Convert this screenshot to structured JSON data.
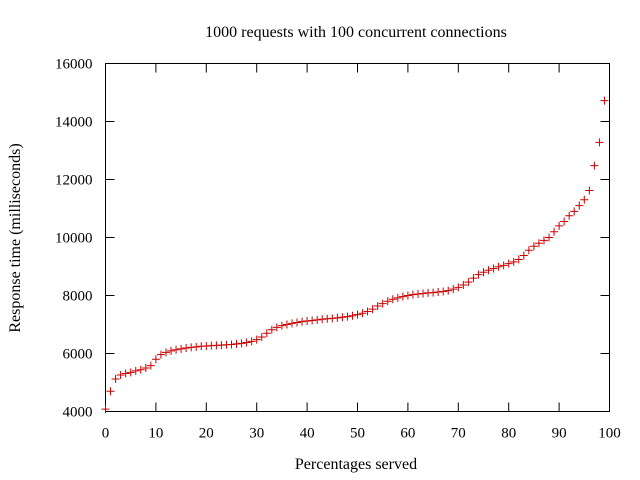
{
  "chart_data": {
    "type": "scatter",
    "title": "1000 requests with 100 concurrent connections",
    "xlabel": "Percentages served",
    "ylabel": "Response time (milliseconds)",
    "xlim": [
      0,
      100
    ],
    "ylim": [
      4000,
      16000
    ],
    "xticks": [
      0,
      10,
      20,
      30,
      40,
      50,
      60,
      70,
      80,
      90,
      100
    ],
    "yticks": [
      4000,
      6000,
      8000,
      10000,
      12000,
      14000,
      16000
    ],
    "xtick_labels": [
      "0",
      "10",
      "20",
      "30",
      "40",
      "50",
      "60",
      "70",
      "80",
      "90",
      "100"
    ],
    "ytick_labels": [
      "4000",
      "6000",
      "8000",
      "10000",
      "12000",
      "14000",
      "16000"
    ],
    "grid": false,
    "legend": "none",
    "marker_color": "#cc0000",
    "series": [
      {
        "marker": "plus",
        "x": [
          0,
          1,
          2,
          3,
          4,
          5,
          6,
          7,
          8,
          9,
          10,
          11,
          12,
          13,
          14,
          15,
          16,
          17,
          18,
          19,
          20,
          21,
          22,
          23,
          24,
          25,
          26,
          27,
          28,
          29,
          30,
          31,
          32,
          33,
          34,
          35,
          36,
          37,
          38,
          39,
          40,
          41,
          42,
          43,
          44,
          45,
          46,
          47,
          48,
          49,
          50,
          51,
          52,
          53,
          54,
          55,
          56,
          57,
          58,
          59,
          60,
          61,
          62,
          63,
          64,
          65,
          66,
          67,
          68,
          69,
          70,
          71,
          72,
          73,
          74,
          75,
          76,
          77,
          78,
          79,
          80,
          81,
          82,
          83,
          84,
          85,
          86,
          87,
          88,
          89,
          90,
          91,
          92,
          93,
          94,
          95,
          96,
          97,
          98,
          99
        ],
        "y": [
          4080,
          4700,
          5120,
          5260,
          5310,
          5350,
          5400,
          5440,
          5500,
          5580,
          5800,
          5960,
          6040,
          6090,
          6130,
          6160,
          6190,
          6210,
          6230,
          6250,
          6260,
          6270,
          6280,
          6290,
          6300,
          6310,
          6330,
          6350,
          6380,
          6420,
          6480,
          6570,
          6700,
          6820,
          6900,
          6960,
          7000,
          7040,
          7070,
          7100,
          7120,
          7140,
          7160,
          7180,
          7200,
          7210,
          7230,
          7250,
          7270,
          7300,
          7340,
          7390,
          7450,
          7530,
          7640,
          7720,
          7800,
          7870,
          7920,
          7960,
          8000,
          8030,
          8050,
          8070,
          8090,
          8100,
          8120,
          8140,
          8170,
          8220,
          8280,
          8360,
          8460,
          8600,
          8720,
          8800,
          8870,
          8930,
          8990,
          9040,
          9100,
          9160,
          9240,
          9380,
          9560,
          9700,
          9800,
          9900,
          10000,
          10200,
          10400,
          10550,
          10750,
          10900,
          11100,
          11300,
          11620,
          12480,
          13280,
          14720
        ]
      }
    ]
  }
}
